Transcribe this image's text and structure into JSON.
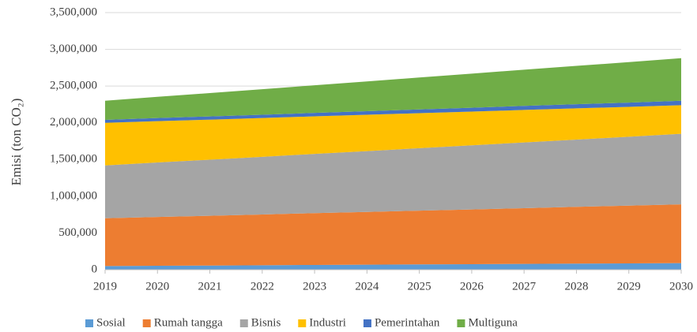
{
  "chart_data": {
    "type": "stacked_area",
    "y_label": "Emisi (ton CO₂)",
    "x": [
      2019,
      2020,
      2021,
      2022,
      2023,
      2024,
      2025,
      2026,
      2027,
      2028,
      2029,
      2030
    ],
    "xlim": [
      2019,
      2030
    ],
    "xticks": [
      2019,
      2020,
      2021,
      2022,
      2023,
      2024,
      2025,
      2026,
      2027,
      2028,
      2029,
      2030
    ],
    "ylim": [
      0,
      3500000
    ],
    "yticks": [
      0,
      {
        "value": 500000,
        "label": "500,000"
      },
      {
        "value": 1000000,
        "label": "1,000,000"
      },
      {
        "value": 1500000,
        "label": "1,500,000"
      },
      {
        "value": 2000000,
        "label": "2,000,000"
      },
      {
        "value": 2500000,
        "label": "2,500,000"
      },
      {
        "value": 3000000,
        "label": "3,000,000"
      },
      {
        "value": 3500000,
        "label": "3,500,000"
      }
    ],
    "grid": true,
    "legend": "bottom",
    "series": [
      {
        "name": "Sosial",
        "color": "#5b9bd5",
        "values": [
          50000,
          54000,
          57000,
          61000,
          65000,
          68000,
          72000,
          75000,
          79000,
          83000,
          86000,
          90000
        ]
      },
      {
        "name": "Rumah tangga",
        "color": "#ed7d31",
        "values": [
          650000,
          664000,
          677000,
          691000,
          705000,
          718000,
          732000,
          745000,
          759000,
          773000,
          786000,
          800000
        ]
      },
      {
        "name": "Bisnis",
        "color": "#a5a5a5",
        "values": [
          720000,
          742000,
          764000,
          785000,
          807000,
          829000,
          851000,
          873000,
          895000,
          916000,
          938000,
          960000
        ]
      },
      {
        "name": "Industri",
        "color": "#ffc000",
        "values": [
          580000,
          563000,
          545000,
          528000,
          511000,
          494000,
          476000,
          459000,
          442000,
          425000,
          407000,
          390000
        ]
      },
      {
        "name": "Pemerintahan",
        "color": "#4472c4",
        "values": [
          40000,
          42000,
          44000,
          45000,
          47000,
          49000,
          51000,
          53000,
          55000,
          56000,
          58000,
          60000
        ]
      },
      {
        "name": "Multiguna",
        "color": "#70ad47",
        "values": [
          260000,
          289000,
          318000,
          347000,
          376000,
          405000,
          435000,
          464000,
          493000,
          522000,
          551000,
          580000
        ]
      }
    ]
  }
}
